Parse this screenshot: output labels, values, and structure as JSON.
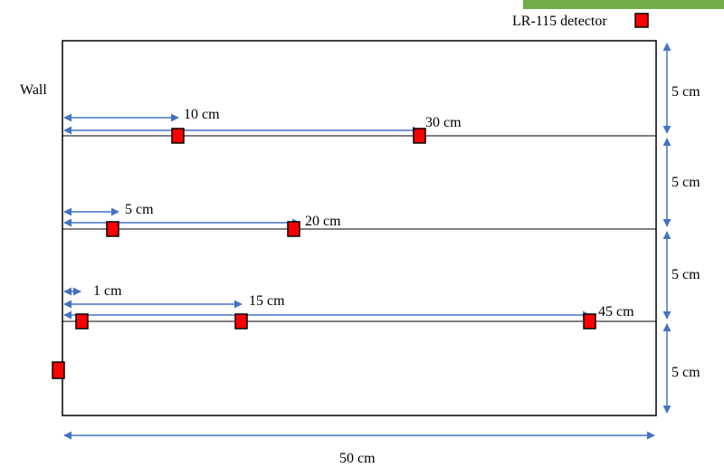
{
  "legend": {
    "label": "LR-115 detector"
  },
  "wall_label": "Wall",
  "width_label": "50 cm",
  "row_spacing_labels": [
    "5 cm",
    "5 cm",
    "5 cm",
    "5 cm"
  ],
  "distance_labels": {
    "row1": [
      "10 cm",
      "30 cm"
    ],
    "row2": [
      "5 cm",
      "20 cm"
    ],
    "row3": [
      "1 cm",
      "15 cm",
      "45 cm"
    ]
  },
  "colors": {
    "detector_fill": "#ff0000",
    "detector_border": "#000000",
    "arrow": "#4472c4",
    "line": "#000000",
    "accent_bar": "#70ad47"
  }
}
